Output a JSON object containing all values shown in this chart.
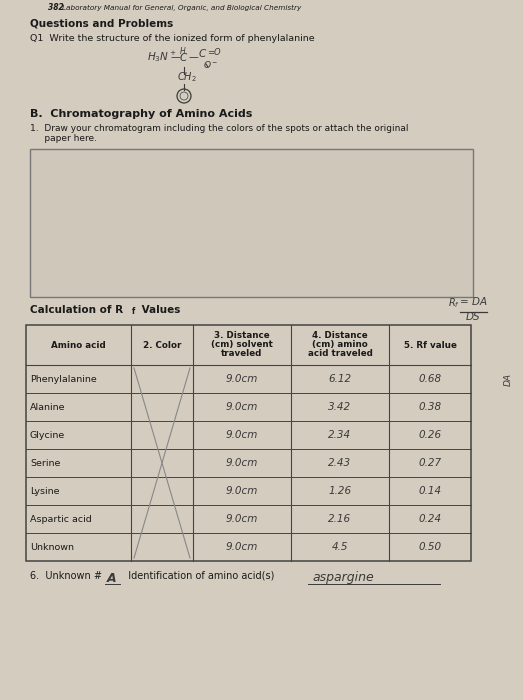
{
  "bg_color": "#d4ccbf",
  "page_num": "382",
  "page_title": "  Laboratory Manual for General, Organic, and Biological Chemistry",
  "section_header": "Questions and Problems",
  "q1_text": "Q1  Write the structure of the ionized form of phenylalanine",
  "section_b": "B.  Chromatography of Amino Acids",
  "item1_a": "1.  Draw your chromatogram including the colors of the spots or attach the original",
  "item1_b": "     paper here.",
  "box_color": "#c9c2b5",
  "calc_header_prefix": "Calculation of R",
  "calc_header_suffix": " Values",
  "col_headers": [
    "Amino acid",
    "2. Color",
    "3. Distance\n(cm) solvent\ntraveled",
    "4. Distance\n(cm) amino\nacid traveled",
    "5. Rf value"
  ],
  "rows": [
    [
      "Phenylalanine",
      "",
      "9.0cm",
      "6.12",
      "0.68"
    ],
    [
      "Alanine",
      "",
      "9.0cm",
      "3.42",
      "0.38"
    ],
    [
      "Glycine",
      "",
      "9.0cm",
      "2.34",
      "0.26"
    ],
    [
      "Serine",
      "",
      "9.0cm",
      "2.43",
      "0.27"
    ],
    [
      "Lysine",
      "",
      "9.0cm",
      "1.26",
      "0.14"
    ],
    [
      "Aspartic acid",
      "",
      "9.0cm",
      "2.16",
      "0.24"
    ],
    [
      "Unknown",
      "",
      "9.0cm",
      "4.5",
      "0.50"
    ]
  ],
  "unknown_id": "A",
  "id_answer": "aspargine",
  "handwriting_color": "#3a3a3a",
  "table_line_color": "#444444",
  "text_color": "#1a1a1a",
  "light_gray_line": "#888888"
}
